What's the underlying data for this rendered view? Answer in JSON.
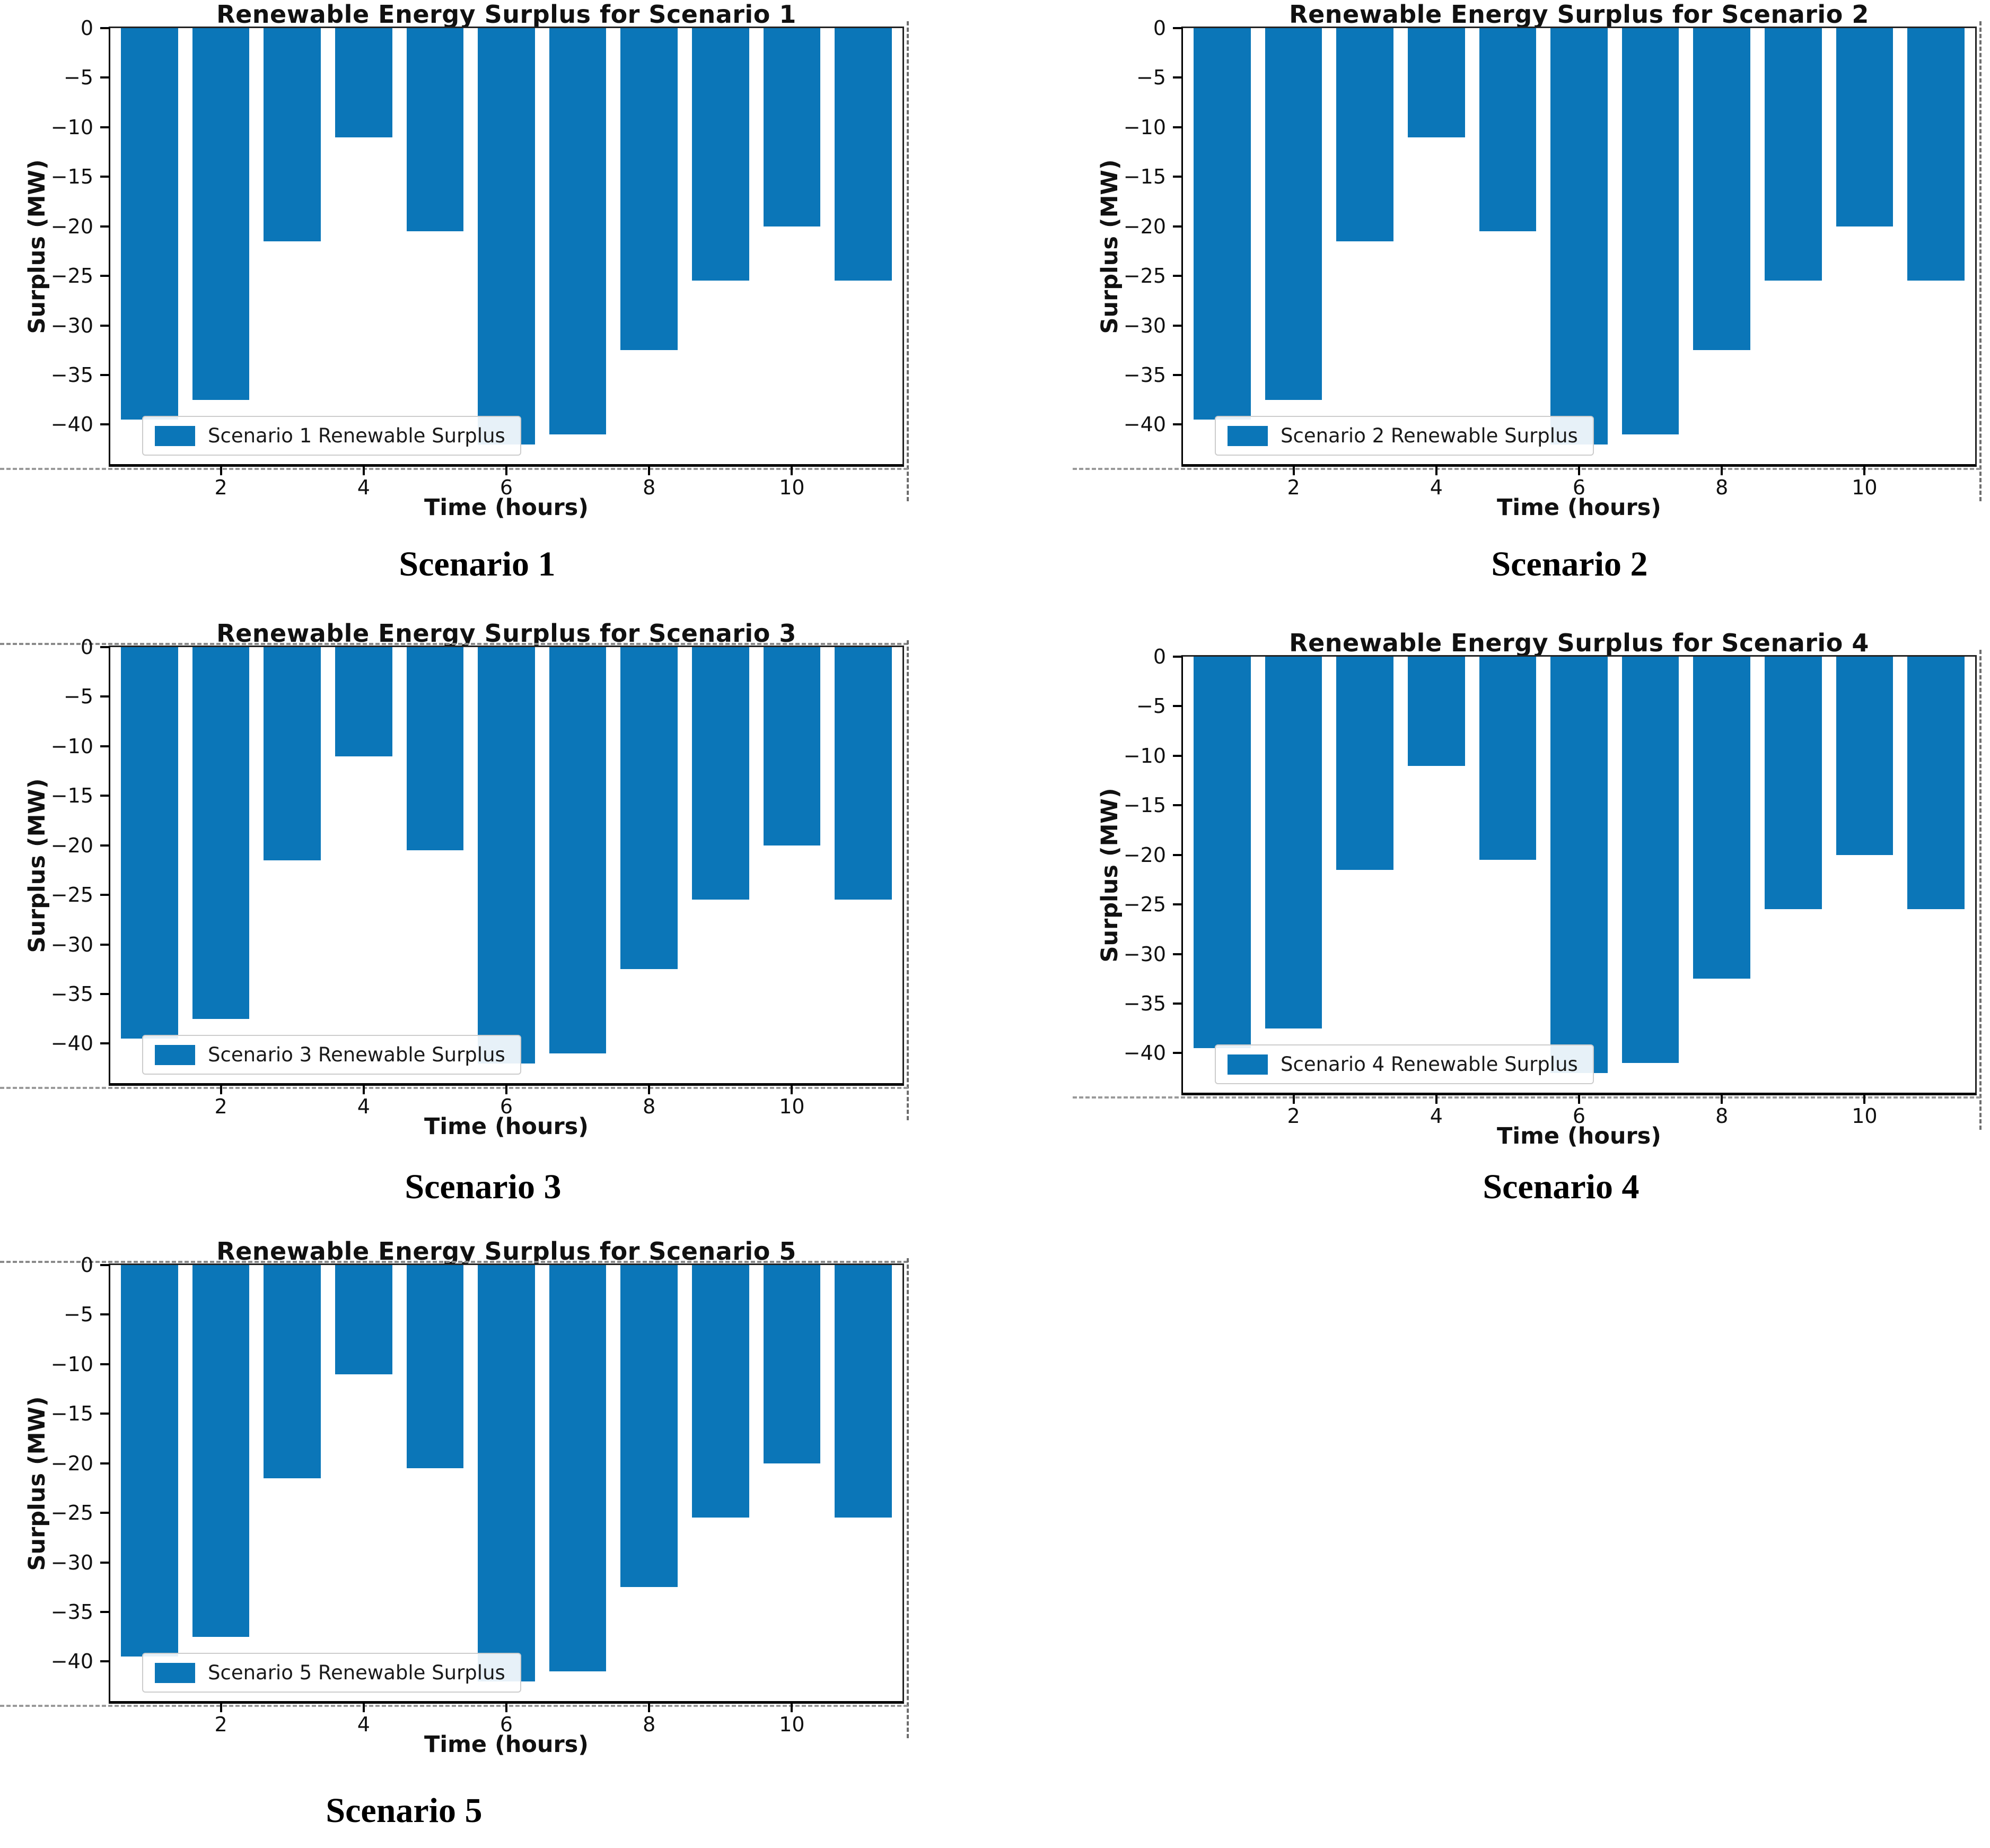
{
  "colors": {
    "bar": "#0b76b8",
    "spine": "#000000",
    "legend_border": "#cccccc",
    "figure_edge_dash": "#8a8a8a",
    "text": "#111111"
  },
  "chart_data": [
    {
      "type": "bar",
      "title": "Renewable Energy Surplus for Scenario 1",
      "xlabel": "Time (hours)",
      "ylabel": "Surplus (MW)",
      "legend_label": "Scenario 1 Renewable Surplus",
      "caption": "Scenario 1",
      "x": [
        1,
        2,
        3,
        4,
        5,
        6,
        7,
        8,
        9,
        10,
        11
      ],
      "values": [
        -39.5,
        -37.5,
        -21.5,
        -11,
        -20.5,
        -42,
        -41,
        -32.5,
        -25.5,
        -20,
        -25.5
      ],
      "bar_width": 0.8,
      "bar_color": "#0b76b8",
      "xlim": [
        0.45,
        11.55
      ],
      "ylim": [
        -44,
        0
      ],
      "xticks": [
        2,
        4,
        6,
        8,
        10
      ],
      "yticks": [
        0,
        -5,
        -10,
        -15,
        -20,
        -25,
        -30,
        -35,
        -40
      ],
      "legend_position": "lower left",
      "grid": false
    },
    {
      "type": "bar",
      "title": "Renewable Energy Surplus for Scenario 2",
      "xlabel": "Time (hours)",
      "ylabel": "Surplus (MW)",
      "legend_label": "Scenario 2 Renewable Surplus",
      "caption": "Scenario 2",
      "x": [
        1,
        2,
        3,
        4,
        5,
        6,
        7,
        8,
        9,
        10,
        11
      ],
      "values": [
        -39.5,
        -37.5,
        -21.5,
        -11,
        -20.5,
        -42,
        -41,
        -32.5,
        -25.5,
        -20,
        -25.5
      ],
      "bar_width": 0.8,
      "bar_color": "#0b76b8",
      "xlim": [
        0.45,
        11.55
      ],
      "ylim": [
        -44,
        0
      ],
      "xticks": [
        2,
        4,
        6,
        8,
        10
      ],
      "yticks": [
        0,
        -5,
        -10,
        -15,
        -20,
        -25,
        -30,
        -35,
        -40
      ],
      "legend_position": "lower left",
      "grid": false
    },
    {
      "type": "bar",
      "title": "Renewable Energy Surplus for Scenario 3",
      "xlabel": "Time (hours)",
      "ylabel": "Surplus (MW)",
      "legend_label": "Scenario 3 Renewable Surplus",
      "caption": "Scenario 3",
      "x": [
        1,
        2,
        3,
        4,
        5,
        6,
        7,
        8,
        9,
        10,
        11
      ],
      "values": [
        -39.5,
        -37.5,
        -21.5,
        -11,
        -20.5,
        -42,
        -41,
        -32.5,
        -25.5,
        -20,
        -25.5
      ],
      "bar_width": 0.8,
      "bar_color": "#0b76b8",
      "xlim": [
        0.45,
        11.55
      ],
      "ylim": [
        -44,
        0
      ],
      "xticks": [
        2,
        4,
        6,
        8,
        10
      ],
      "yticks": [
        0,
        -5,
        -10,
        -15,
        -20,
        -25,
        -30,
        -35,
        -40
      ],
      "legend_position": "lower left",
      "grid": false
    },
    {
      "type": "bar",
      "title": "Renewable Energy Surplus for Scenario 4",
      "xlabel": "Time (hours)",
      "ylabel": "Surplus (MW)",
      "legend_label": "Scenario 4 Renewable Surplus",
      "caption": "Scenario 4",
      "x": [
        1,
        2,
        3,
        4,
        5,
        6,
        7,
        8,
        9,
        10,
        11
      ],
      "values": [
        -39.5,
        -37.5,
        -21.5,
        -11,
        -20.5,
        -42,
        -41,
        -32.5,
        -25.5,
        -20,
        -25.5
      ],
      "bar_width": 0.8,
      "bar_color": "#0b76b8",
      "xlim": [
        0.45,
        11.55
      ],
      "ylim": [
        -44,
        0
      ],
      "xticks": [
        2,
        4,
        6,
        8,
        10
      ],
      "yticks": [
        0,
        -5,
        -10,
        -15,
        -20,
        -25,
        -30,
        -35,
        -40
      ],
      "legend_position": "lower left",
      "grid": false
    },
    {
      "type": "bar",
      "title": "Renewable Energy Surplus for Scenario 5",
      "xlabel": "Time (hours)",
      "ylabel": "Surplus (MW)",
      "legend_label": "Scenario 5 Renewable Surplus",
      "caption": "Scenario 5",
      "x": [
        1,
        2,
        3,
        4,
        5,
        6,
        7,
        8,
        9,
        10,
        11
      ],
      "values": [
        -39.5,
        -37.5,
        -21.5,
        -11,
        -20.5,
        -42,
        -41,
        -32.5,
        -25.5,
        -20,
        -25.5
      ],
      "bar_width": 0.8,
      "bar_color": "#0b76b8",
      "xlim": [
        0.45,
        11.55
      ],
      "ylim": [
        -44,
        0
      ],
      "xticks": [
        2,
        4,
        6,
        8,
        10
      ],
      "yticks": [
        0,
        -5,
        -10,
        -15,
        -20,
        -25,
        -30,
        -35,
        -40
      ],
      "legend_position": "lower left",
      "grid": false
    }
  ]
}
